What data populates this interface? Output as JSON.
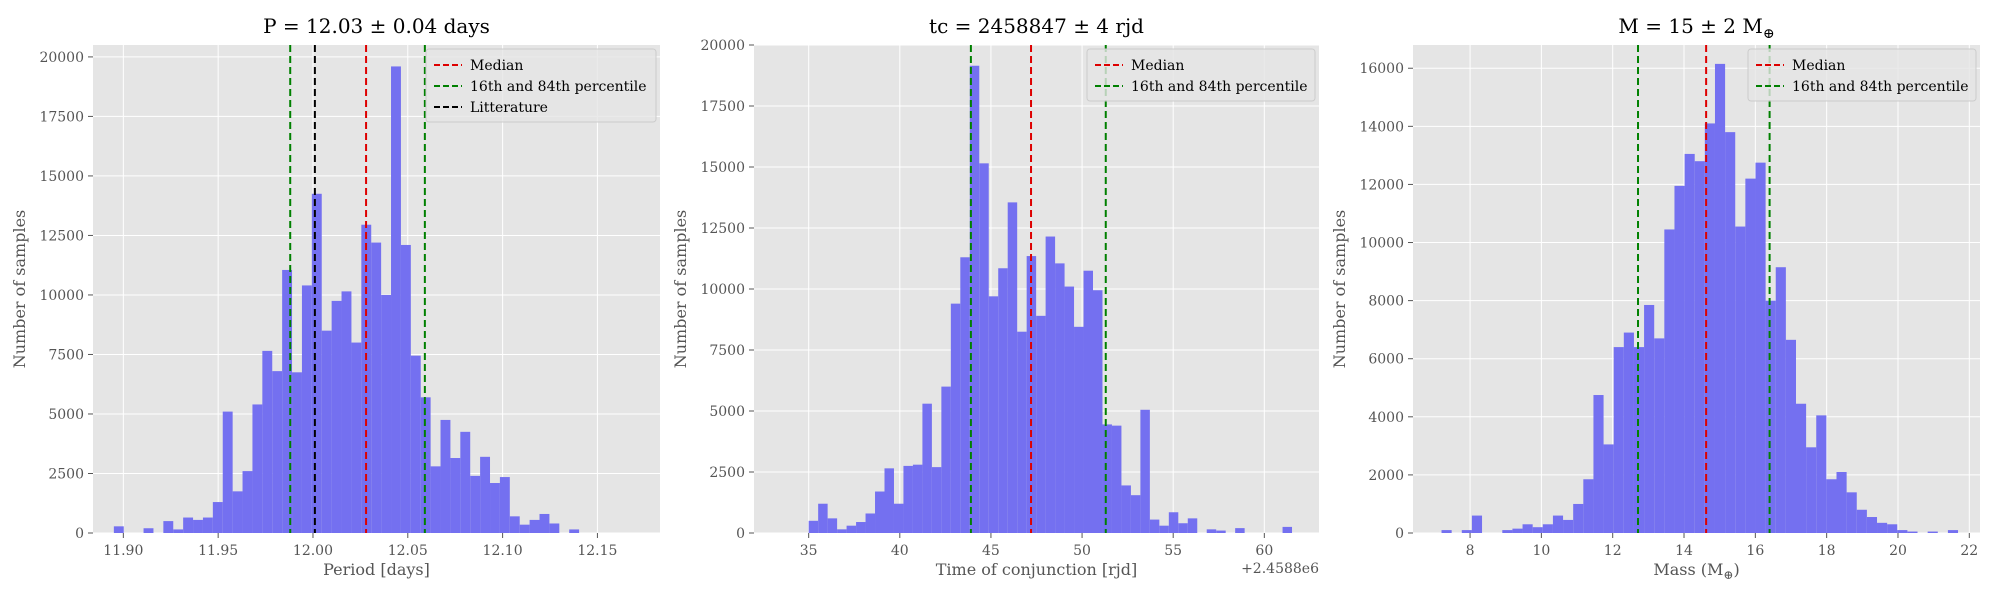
{
  "chart_data": [
    {
      "type": "bar",
      "title": "P = 12.03 ± 0.04 days",
      "xlabel": "Period [days]",
      "ylabel": "Number of samples",
      "xlim": [
        11.884,
        12.183
      ],
      "ylim": [
        0,
        20500
      ],
      "xticks": [
        11.9,
        11.95,
        12.0,
        12.05,
        12.1,
        12.15
      ],
      "xtick_labels": [
        "11.90",
        "11.95",
        "12.00",
        "12.05",
        "12.10",
        "12.15"
      ],
      "yticks": [
        0,
        2500,
        5000,
        7500,
        10000,
        12500,
        15000,
        17500,
        20000
      ],
      "ytick_labels": [
        "0",
        "2500",
        "5000",
        "7500",
        "10000",
        "12500",
        "15000",
        "17500",
        "20000"
      ],
      "bin_start": 11.895,
      "bin_width": 0.00522,
      "values": [
        280,
        0,
        0,
        200,
        0,
        500,
        150,
        650,
        550,
        650,
        1300,
        5100,
        1750,
        2600,
        5400,
        7650,
        6800,
        11050,
        6750,
        10400,
        14250,
        8500,
        9750,
        10150,
        8000,
        12950,
        12200,
        10000,
        19600,
        12100,
        7450,
        5700,
        2800,
        4750,
        3150,
        4250,
        2400,
        3200,
        2100,
        2350,
        700,
        350,
        550,
        800,
        400,
        0,
        150
      ],
      "vlines": [
        {
          "x": 12.028,
          "color": "#dd0000",
          "label": "Median"
        },
        {
          "x": 11.988,
          "color": "#008000",
          "label": "16th and 84th percentile"
        },
        {
          "x": 12.059,
          "color": "#008000",
          "label": ""
        },
        {
          "x": 12.001,
          "color": "#000000",
          "label": "Litterature"
        }
      ],
      "legend": [
        "Median",
        "16th and 84th percentile",
        "Litterature"
      ],
      "legend_position": "top-right",
      "grid": true
    },
    {
      "type": "bar",
      "title": "tc = 2458847 ± 4 rjd",
      "xlabel": "Time of conjunction [rjd]",
      "ylabel": "Number of samples",
      "offset_text": "+2.4588e6",
      "xlim": [
        32,
        63
      ],
      "ylim": [
        0,
        20000
      ],
      "xticks": [
        35,
        40,
        45,
        50,
        55,
        60
      ],
      "xtick_labels": [
        "35",
        "40",
        "45",
        "50",
        "55",
        "60"
      ],
      "yticks": [
        0,
        2500,
        5000,
        7500,
        10000,
        12500,
        15000,
        17500,
        20000
      ],
      "ytick_labels": [
        "0",
        "2500",
        "5000",
        "7500",
        "10000",
        "12500",
        "15000",
        "17500",
        "20000"
      ],
      "bin_start": 35.0,
      "bin_width": 0.52,
      "values": [
        500,
        1200,
        600,
        150,
        300,
        450,
        800,
        1700,
        2650,
        1200,
        2750,
        2800,
        5300,
        2700,
        6000,
        9400,
        11300,
        19150,
        15150,
        9700,
        10850,
        13550,
        8250,
        11350,
        8900,
        12150,
        11050,
        10100,
        8450,
        10750,
        9950,
        4450,
        4400,
        1950,
        1550,
        5050,
        550,
        300,
        850,
        400,
        600,
        0,
        150,
        100,
        0,
        200,
        0,
        0,
        0,
        0,
        250
      ],
      "vlines": [
        {
          "x": 47.2,
          "color": "#dd0000",
          "label": "Median"
        },
        {
          "x": 43.9,
          "color": "#008000",
          "label": "16th and 84th percentile"
        },
        {
          "x": 51.3,
          "color": "#008000",
          "label": ""
        }
      ],
      "legend": [
        "Median",
        "16th and 84th percentile"
      ],
      "legend_position": "top-right",
      "grid": true
    },
    {
      "type": "bar",
      "title": "M = 15 ± 2 M",
      "title_sub": "⊕",
      "xlabel": "Mass (M",
      "xlabel_sub": "⊕",
      "xlabel_end": ")",
      "ylabel": "Number of samples",
      "xlim": [
        6.4,
        22.3
      ],
      "ylim": [
        0,
        16800
      ],
      "xticks": [
        8,
        10,
        12,
        14,
        16,
        18,
        20,
        22
      ],
      "xtick_labels": [
        "8",
        "10",
        "12",
        "14",
        "16",
        "18",
        "20",
        "22"
      ],
      "yticks": [
        0,
        2000,
        4000,
        6000,
        8000,
        10000,
        12000,
        14000,
        16000
      ],
      "ytick_labels": [
        "0",
        "2000",
        "4000",
        "6000",
        "8000",
        "10000",
        "12000",
        "14000",
        "16000"
      ],
      "bin_start": 7.2,
      "bin_width": 0.284,
      "values": [
        100,
        0,
        100,
        600,
        0,
        0,
        100,
        150,
        300,
        200,
        300,
        600,
        450,
        1000,
        1850,
        4750,
        3050,
        6400,
        6900,
        6400,
        7850,
        6700,
        10450,
        11950,
        13050,
        12800,
        14100,
        16150,
        13800,
        10550,
        12200,
        12750,
        8000,
        9150,
        6650,
        4450,
        2950,
        4050,
        1850,
        2100,
        1400,
        800,
        550,
        350,
        300,
        100,
        50,
        0,
        50,
        0,
        100
      ],
      "vlines": [
        {
          "x": 14.62,
          "color": "#dd0000",
          "label": "Median"
        },
        {
          "x": 12.71,
          "color": "#008000",
          "label": "16th and 84th percentile"
        },
        {
          "x": 16.4,
          "color": "#008000",
          "label": ""
        }
      ],
      "legend": [
        "Median",
        "16th and 84th percentile"
      ],
      "legend_position": "top-right",
      "grid": true
    }
  ]
}
